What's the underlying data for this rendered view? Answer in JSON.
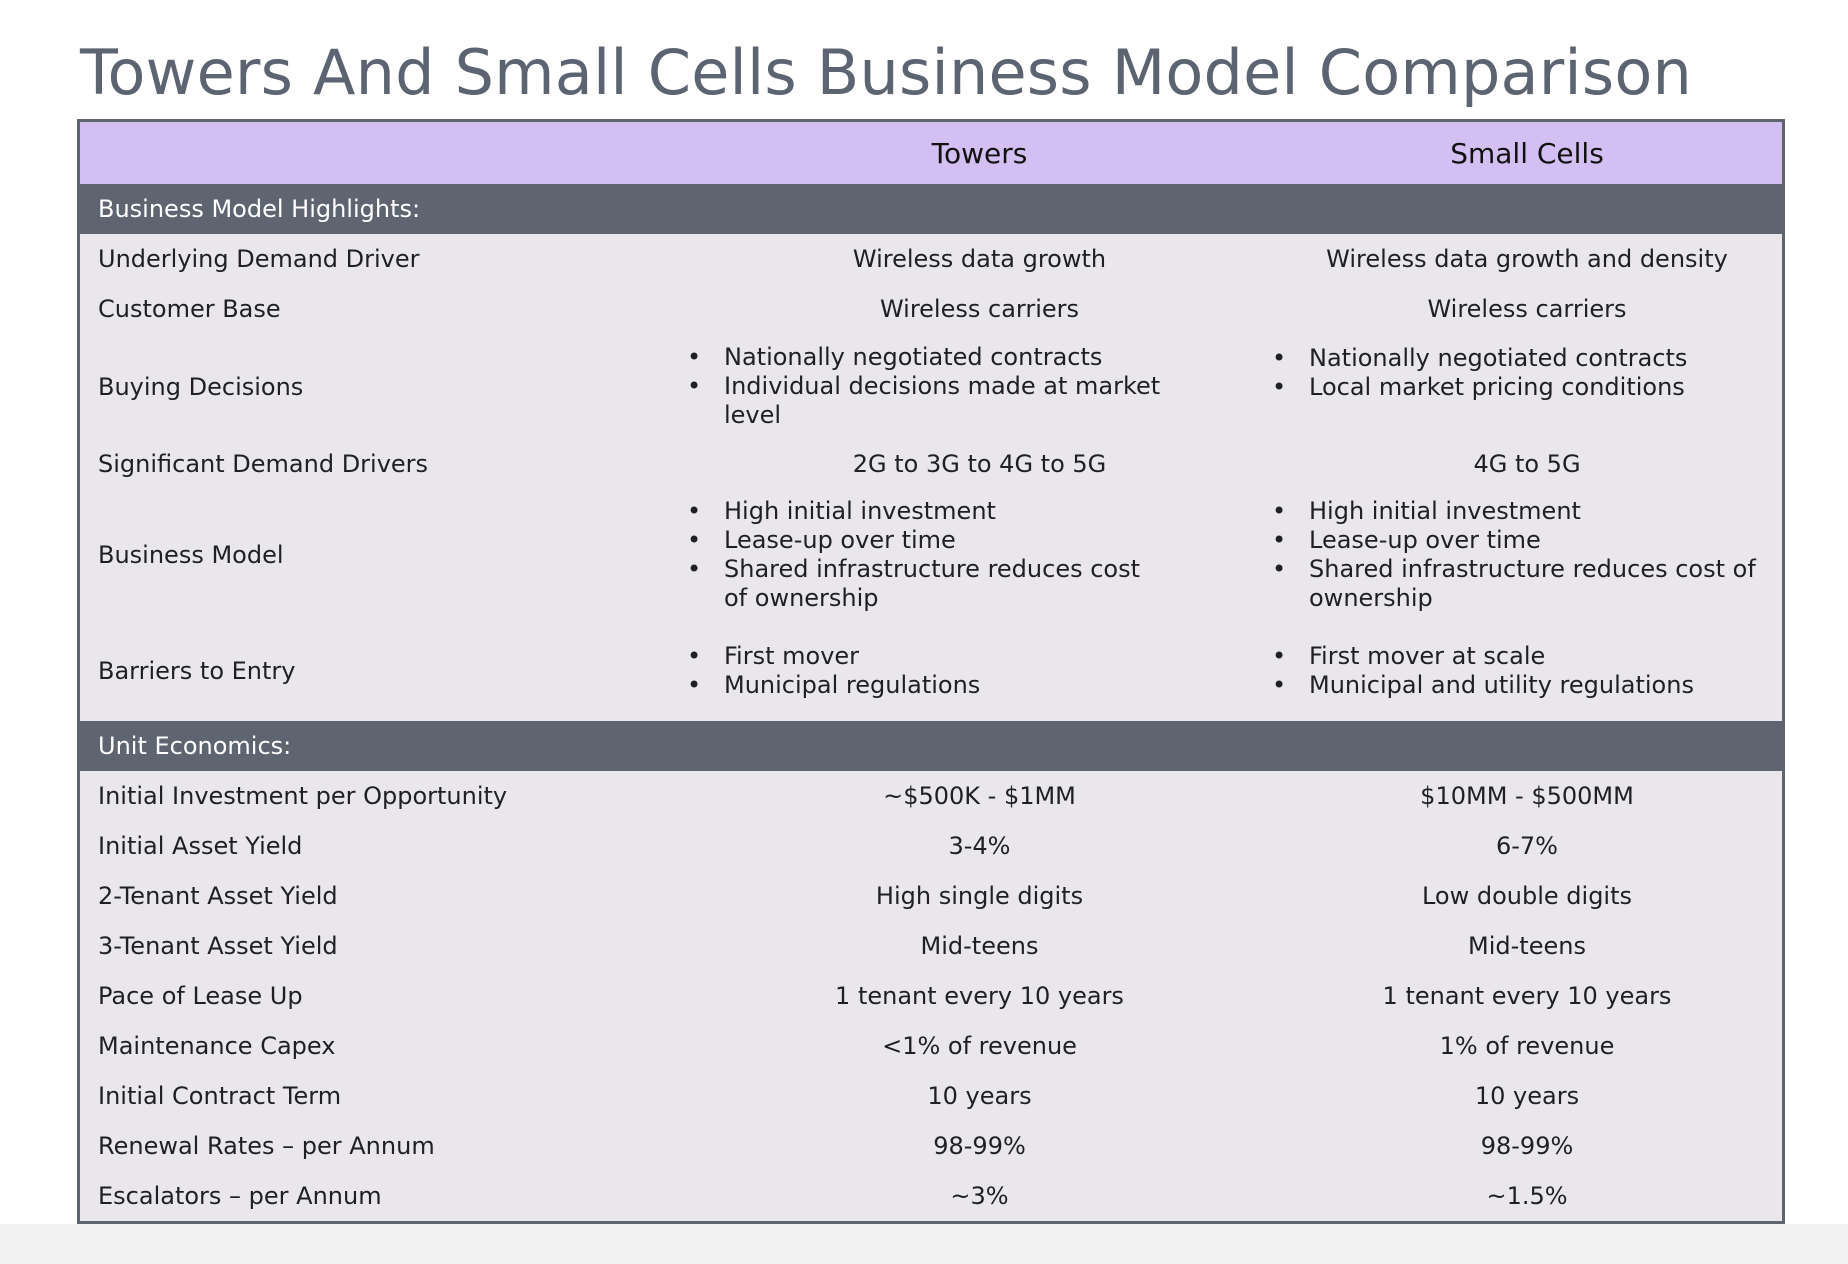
{
  "title": "Towers And Small Cells Business Model Comparison",
  "columns": [
    "",
    "Towers",
    "Small Cells"
  ],
  "sections": [
    {
      "heading": "Business Model Highlights:",
      "rows": [
        {
          "label": "Underlying Demand Driver",
          "towers": "Wireless data growth",
          "small": "Wireless data growth and density"
        },
        {
          "label": "Customer Base",
          "towers": "Wireless carriers",
          "small": "Wireless carriers"
        },
        {
          "label": "Buying Decisions",
          "towers": [
            "Nationally negotiated contracts",
            "Individual decisions made at market level"
          ],
          "small": [
            "Nationally negotiated contracts",
            "Local market pricing conditions"
          ]
        },
        {
          "label": "Significant Demand Drivers",
          "towers": "2G to 3G to 4G to 5G",
          "small": "4G to 5G"
        },
        {
          "label": "Business Model",
          "towers": [
            "High initial investment",
            "Lease-up over time",
            "Shared infrastructure reduces cost of ownership"
          ],
          "small": [
            "High initial investment",
            "Lease-up over time",
            "Shared infrastructure reduces cost of ownership"
          ]
        },
        {
          "label": "Barriers to Entry",
          "towers": [
            "First mover",
            "Municipal regulations"
          ],
          "small": [
            "First mover at scale",
            "Municipal and utility regulations"
          ]
        }
      ]
    },
    {
      "heading": "Unit Economics:",
      "rows": [
        {
          "label": "Initial Investment per Opportunity",
          "towers": "~$500K - $1MM",
          "small": "$10MM - $500MM"
        },
        {
          "label": "Initial Asset Yield",
          "towers": "3-4%",
          "small": "6-7%"
        },
        {
          "label": "2-Tenant Asset Yield",
          "towers": "High single digits",
          "small": "Low double digits"
        },
        {
          "label": "3-Tenant Asset Yield",
          "towers": "Mid-teens",
          "small": "Mid-teens"
        },
        {
          "label": "Pace of Lease Up",
          "towers": "1 tenant every 10 years",
          "small": "1 tenant every 10 years"
        },
        {
          "label": "Maintenance Capex",
          "towers": "<1% of revenue",
          "small": "1% of revenue"
        },
        {
          "label": "Initial Contract Term",
          "towers": "10 years",
          "small": "10 years"
        },
        {
          "label": "Renewal Rates – per Annum",
          "towers": "98-99%",
          "small": "98-99%"
        },
        {
          "label": "Escalators – per Annum",
          "towers": "~3%",
          "small": "~1.5%"
        }
      ]
    }
  ],
  "colors": {
    "header_bg": "#d4bff3",
    "section_bg": "#5e6570",
    "body_bg": "#e9e7ec",
    "title": "#5c6471"
  }
}
